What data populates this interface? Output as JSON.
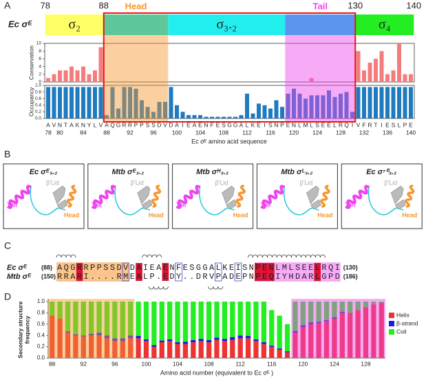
{
  "panel_labels": [
    "A",
    "B",
    "C",
    "D"
  ],
  "panel_a": {
    "protein_label": "Ec σᴱ",
    "domains": [
      {
        "label": "σ₂",
        "start": 78,
        "end": 87,
        "color": "#ffff66"
      },
      {
        "start": 88,
        "end": 98,
        "color": "#5fc89a"
      },
      {
        "label": "σ₃.₂",
        "start": 99,
        "end": 118,
        "color": "#22eeee"
      },
      {
        "start": 119,
        "end": 130,
        "color": "#5b95ee"
      },
      {
        "label": "σ₄",
        "start": 131,
        "end": 140,
        "color": "#22ee22"
      }
    ],
    "boundary_labels": [
      78,
      88,
      130,
      140
    ],
    "regions": [
      {
        "label": "Head",
        "start": 88,
        "end": 98,
        "color": "#f5962e"
      },
      {
        "label": "Tail",
        "start": 119,
        "end": 130,
        "color": "#ee44ee"
      }
    ]
  },
  "chart_data": [
    {
      "type": "bar",
      "y_label": "Conservation",
      "color": "#f47c7c",
      "values": [
        1,
        2,
        3,
        3,
        4,
        3,
        4,
        2,
        3,
        9,
        null,
        null,
        null,
        null,
        null,
        null,
        null,
        null,
        null,
        null,
        null,
        null,
        null,
        null,
        null,
        null,
        null,
        null,
        null,
        null,
        null,
        null,
        null,
        null,
        null,
        null,
        null,
        null,
        null,
        null,
        null,
        null,
        null,
        null,
        null,
        1,
        null,
        null,
        null,
        null,
        null,
        null,
        null,
        8,
        3,
        5,
        6,
        8,
        2,
        3,
        10,
        2,
        2
      ],
      "ylim": [
        0,
        10
      ],
      "yticks": [
        0,
        2,
        4,
        6,
        8,
        10
      ]
    },
    {
      "type": "bar",
      "y_label": "Occupancy",
      "x_label": "Ec σᴱ amino acid sequence",
      "color": "#1f7bbf",
      "categories": [
        "A",
        "V",
        "N",
        "T",
        "A",
        "K",
        "N",
        "Y",
        "L",
        "V",
        "A",
        "Q",
        "G",
        "R",
        "R",
        "P",
        "P",
        "S",
        "S",
        "D",
        "V",
        "D",
        "A",
        "I",
        "E",
        "A",
        "E",
        "N",
        "F",
        "E",
        "S",
        "G",
        "G",
        "A",
        "L",
        "K",
        "E",
        "I",
        "S",
        "N",
        "P",
        "E",
        "N",
        "L",
        "M",
        "L",
        "S",
        "E",
        "E",
        "L",
        "R",
        "Q",
        "I",
        "V",
        "F",
        "R",
        "T",
        "I",
        "E",
        "S",
        "L",
        "P",
        "E"
      ],
      "category_numbers": [
        78,
        null,
        80,
        null,
        null,
        null,
        84,
        null,
        null,
        null,
        88,
        null,
        null,
        null,
        92,
        null,
        null,
        null,
        96,
        null,
        null,
        null,
        100,
        null,
        null,
        null,
        104,
        null,
        null,
        null,
        108,
        null,
        null,
        null,
        112,
        null,
        null,
        null,
        116,
        null,
        null,
        null,
        120,
        null,
        null,
        null,
        124,
        null,
        null,
        null,
        128,
        null,
        null,
        null,
        132,
        null,
        null,
        null,
        136,
        null,
        null,
        null,
        140
      ],
      "values": [
        0.95,
        0.95,
        0.95,
        0.95,
        0.95,
        0.95,
        0.95,
        0.95,
        0.95,
        0.95,
        0.1,
        0.95,
        0.3,
        0.95,
        0.95,
        0.9,
        0.55,
        0.35,
        0.2,
        0.5,
        0.5,
        0.95,
        0.4,
        0.2,
        0.1,
        0.1,
        0.1,
        0.05,
        0.05,
        0.05,
        0.05,
        0.05,
        0.05,
        0.1,
        0.75,
        0.15,
        0.45,
        0.4,
        0.3,
        0.55,
        0.35,
        0.75,
        0.9,
        0.75,
        0.6,
        0.7,
        0.7,
        0.7,
        0.85,
        0.65,
        0.75,
        0.8,
        0.2,
        0.95,
        0.95,
        0.95,
        0.95,
        0.95,
        0.95,
        0.95,
        0.95,
        0.95,
        0.95
      ],
      "ylim": [
        0,
        1
      ],
      "yticks": [
        {
          "value": 0,
          "label": "0.0"
        },
        0.2,
        0.4,
        0.6,
        0.8,
        {
          "value": 1,
          "label": "1.0"
        }
      ]
    },
    {
      "type": "stacked_bar",
      "y_label": [
        "Secondary structure",
        "frequency"
      ],
      "x_label": "Amino acid number (equivalent to Ec σᴱ )",
      "categories": [
        "88",
        null,
        null,
        null,
        "92",
        null,
        null,
        null,
        "96",
        null,
        null,
        null,
        "100",
        null,
        null,
        null,
        "104",
        null,
        null,
        null,
        "108",
        null,
        null,
        null,
        "112",
        null,
        null,
        null,
        "116",
        null,
        null,
        null,
        "120",
        null,
        null,
        null,
        "124",
        null,
        null,
        null,
        "128",
        null,
        null
      ],
      "series": [
        {
          "name": "Helix",
          "color": "#ee3333",
          "values": [
            0.75,
            0.7,
            0.45,
            0.4,
            0.38,
            0.4,
            0.4,
            0.35,
            0.3,
            0.3,
            0.35,
            0.35,
            0.3,
            0.2,
            0.28,
            0.3,
            0.25,
            0.25,
            0.28,
            0.3,
            0.28,
            0.32,
            0.3,
            0.32,
            0.35,
            0.35,
            0.3,
            0.25,
            0.2,
            0.15,
            0.1,
            0.45,
            0.55,
            0.6,
            0.62,
            0.65,
            0.7,
            0.8,
            0.8,
            0.85,
            0.9,
            0.95,
            0.98
          ]
        },
        {
          "name": "β-strand",
          "color": "#1a1aee",
          "values": [
            0,
            0,
            0.02,
            0.02,
            0.02,
            0.03,
            0.05,
            0.05,
            0.05,
            0.05,
            0.05,
            0.04,
            0.03,
            0.03,
            0.03,
            0.03,
            0.03,
            0.04,
            0.04,
            0.04,
            0.04,
            0.04,
            0.04,
            0.05,
            0.05,
            0.04,
            0.03,
            0.03,
            0.02,
            0.02,
            0.02,
            0.03,
            0.03,
            0.03,
            0.02,
            0.02,
            0.02,
            0.02,
            0,
            0,
            0,
            0,
            0
          ]
        },
        {
          "name": "Coil",
          "color": "#22ee22",
          "values": [
            0.25,
            0.3,
            0.53,
            0.58,
            0.6,
            0.57,
            0.55,
            0.6,
            0.65,
            0.65,
            0.6,
            0.61,
            0.67,
            0.77,
            0.69,
            0.67,
            0.72,
            0.71,
            0.68,
            0.66,
            0.68,
            0.64,
            0.66,
            0.63,
            0.6,
            0.61,
            0.67,
            0.72,
            0.63,
            0.58,
            0.48,
            0.52,
            0.42,
            0.37,
            0.36,
            0.33,
            0.28,
            0.18,
            0.2,
            0.15,
            0.1,
            0.05,
            0.02
          ]
        }
      ],
      "ylim": [
        0,
        1
      ],
      "yticks": [
        {
          "value": 0,
          "label": "0.0"
        },
        0.2,
        0.4,
        0.6,
        0.8,
        {
          "value": 1,
          "label": "1.0"
        }
      ]
    }
  ],
  "panel_b": {
    "structures": [
      {
        "title": "Ec σᴱ₃.₂",
        "labels": {
          "tail": "Tail",
          "lid": "β'Lid",
          "head": "Head"
        }
      },
      {
        "title": "Mtb σᴱ₃.₂",
        "labels": {
          "tail": "Tail",
          "lid": "β'Lid",
          "head": "Head"
        }
      },
      {
        "title": "Mtb σᴴ₃.₂",
        "labels": {
          "tail": "Tail",
          "lid": "β'Lid",
          "head": "Head"
        }
      },
      {
        "title": "Mtb σᴸ₃.₂",
        "labels": {
          "tail": "Tail",
          "lid": "β'Lid",
          "head": "Head"
        }
      },
      {
        "title": "Ec σ⁷⁰₃.₂",
        "labels": {
          "tail": "Tail",
          "lid": "β'Lid",
          "head": "Head"
        }
      }
    ]
  },
  "panel_c": {
    "rows": [
      {
        "name": "Ec σᴱ",
        "start": "(88)",
        "sequence": "AQGRRPPSSDVDAIEAENFESGGALKEISNPENLMLSEELRQI",
        "end": "(130)"
      },
      {
        "name": "Mtb σᴱ",
        "start": "(150)",
        "sequence": "RRARI....RMEALP.EDY..DRVPADEPNPEQIYHDARLGPD",
        "end": "(186)"
      }
    ]
  }
}
